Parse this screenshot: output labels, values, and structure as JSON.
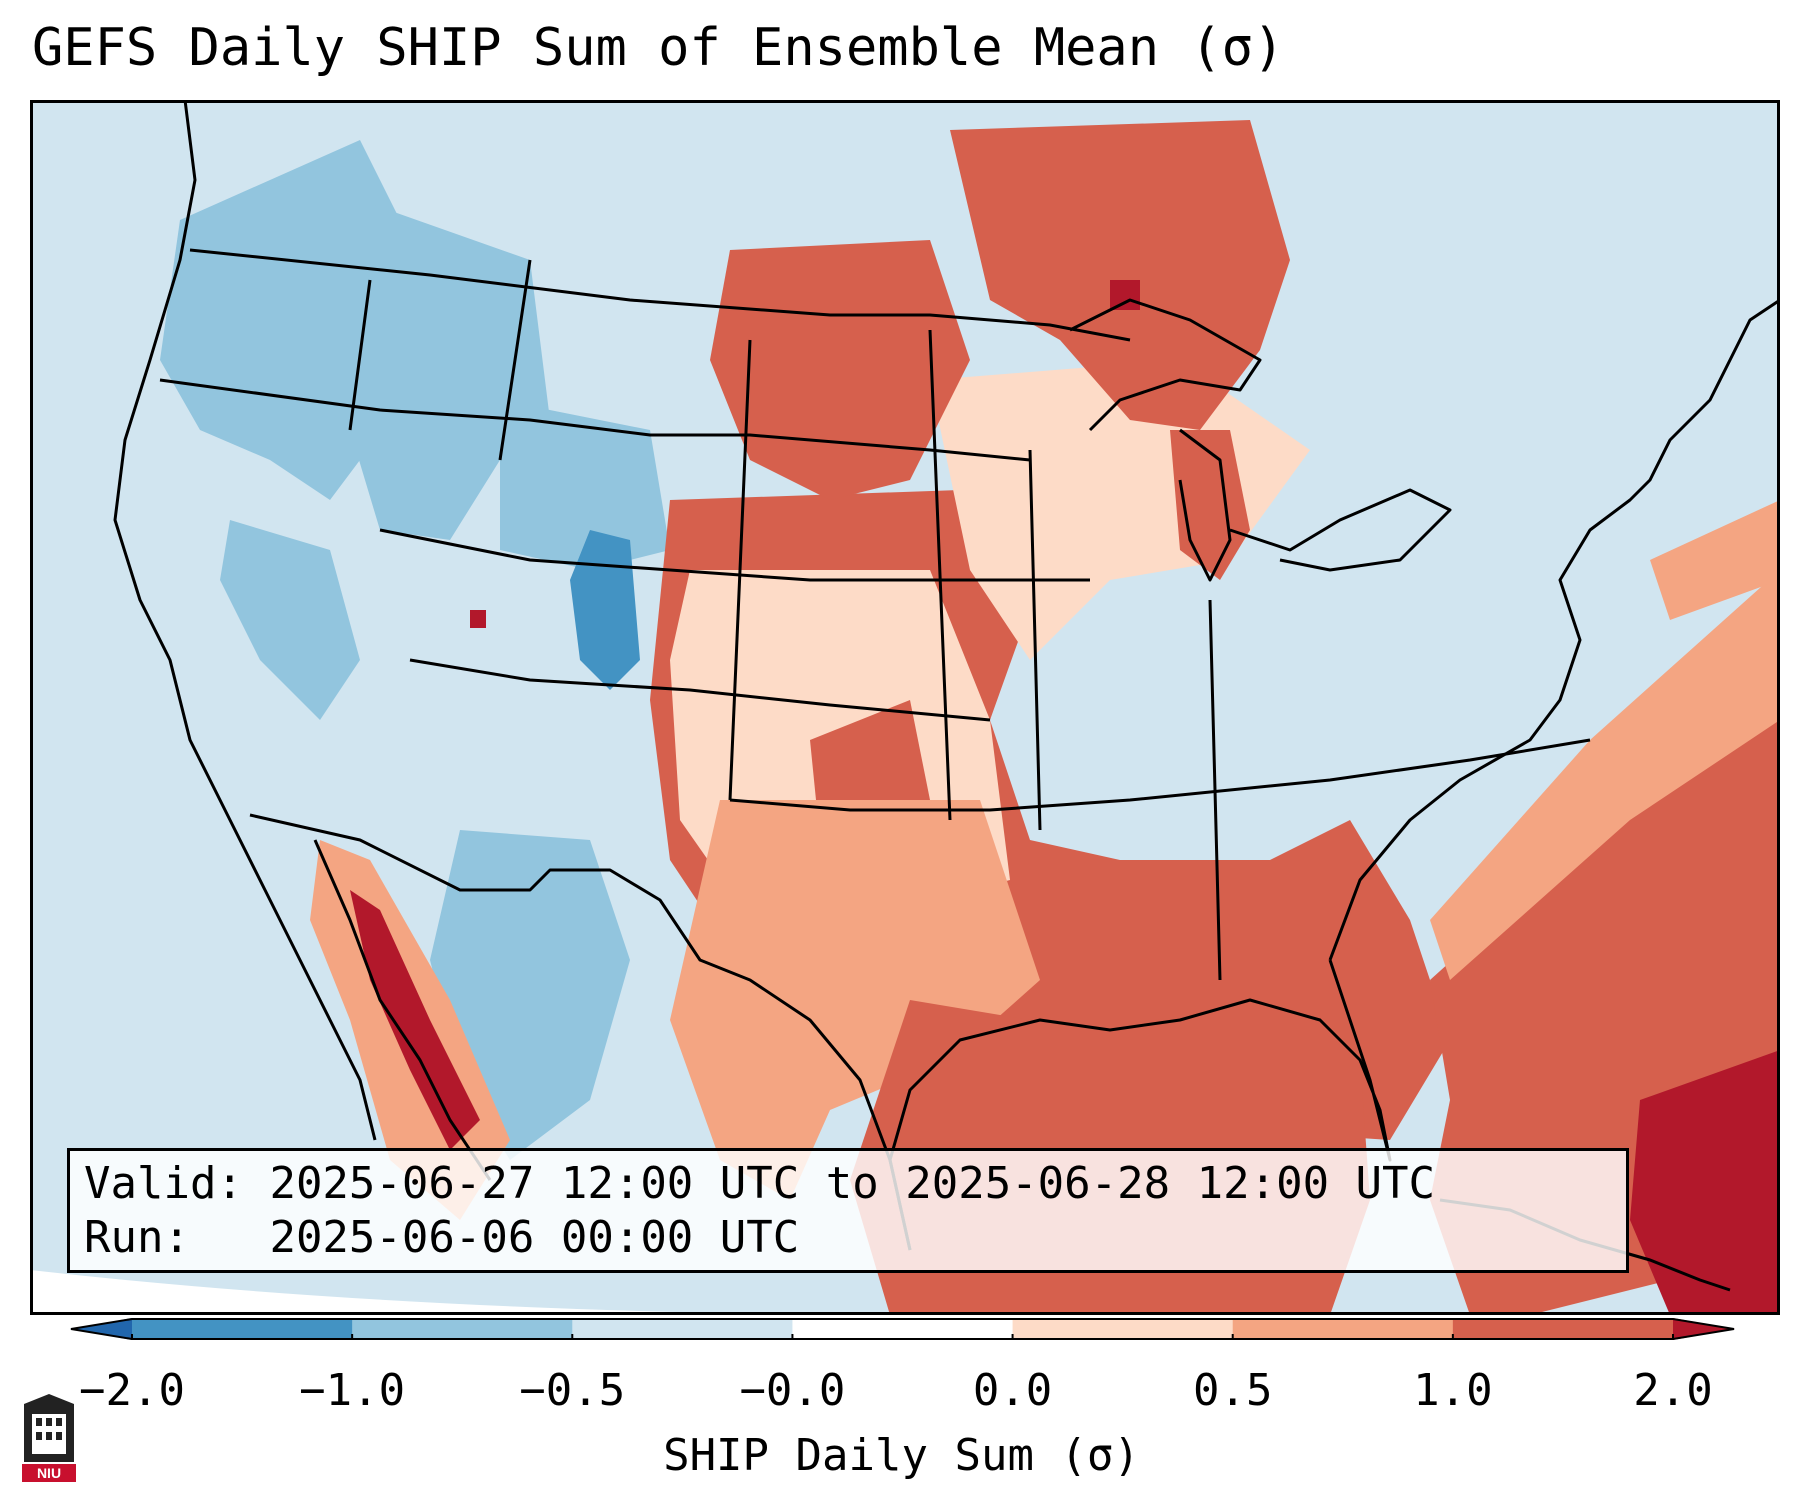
{
  "title": "GEFS Daily SHIP Sum of Ensemble Mean (σ)",
  "info": {
    "valid_label": "Valid:",
    "valid_value": "2025-06-27 12:00 UTC to 2025-06-28 12:00 UTC",
    "run_label": "Run:",
    "run_value": "2025-06-06 00:00 UTC"
  },
  "colorbar": {
    "label": "SHIP Daily Sum (σ)",
    "ticks": [
      "−2.0",
      "−1.0",
      "−0.5",
      "−0.0",
      "0.0",
      "0.5",
      "1.0",
      "2.0"
    ],
    "colors": [
      "#4393c3",
      "#92c5de",
      "#d1e5f0",
      "#ffffff",
      "#fddbc7",
      "#f4a582",
      "#d6604d"
    ],
    "under_color": "#2166ac",
    "over_color": "#b2182b"
  },
  "logo": {
    "text": "NIU"
  },
  "map": {
    "background": "#d1e5f0",
    "regions": [
      {
        "name": "northwest",
        "color": "#92c5de"
      },
      {
        "name": "idaho-montana",
        "color": "#92c5de"
      },
      {
        "name": "colorado-core",
        "color": "#4393c3"
      },
      {
        "name": "dakotas",
        "color": "#d6604d"
      },
      {
        "name": "upper-midwest",
        "color": "#d6604d"
      },
      {
        "name": "central-plains",
        "color": "#fddbc7"
      },
      {
        "name": "south-central",
        "color": "#f4a582"
      },
      {
        "name": "gulf-of-mexico",
        "color": "#d6604d"
      },
      {
        "name": "western-atlantic",
        "color": "#d6604d"
      },
      {
        "name": "caribbean",
        "color": "#b2182b"
      },
      {
        "name": "baja-california",
        "color": "#d6604d"
      },
      {
        "name": "southeast",
        "color": "#fddbc7"
      }
    ]
  }
}
